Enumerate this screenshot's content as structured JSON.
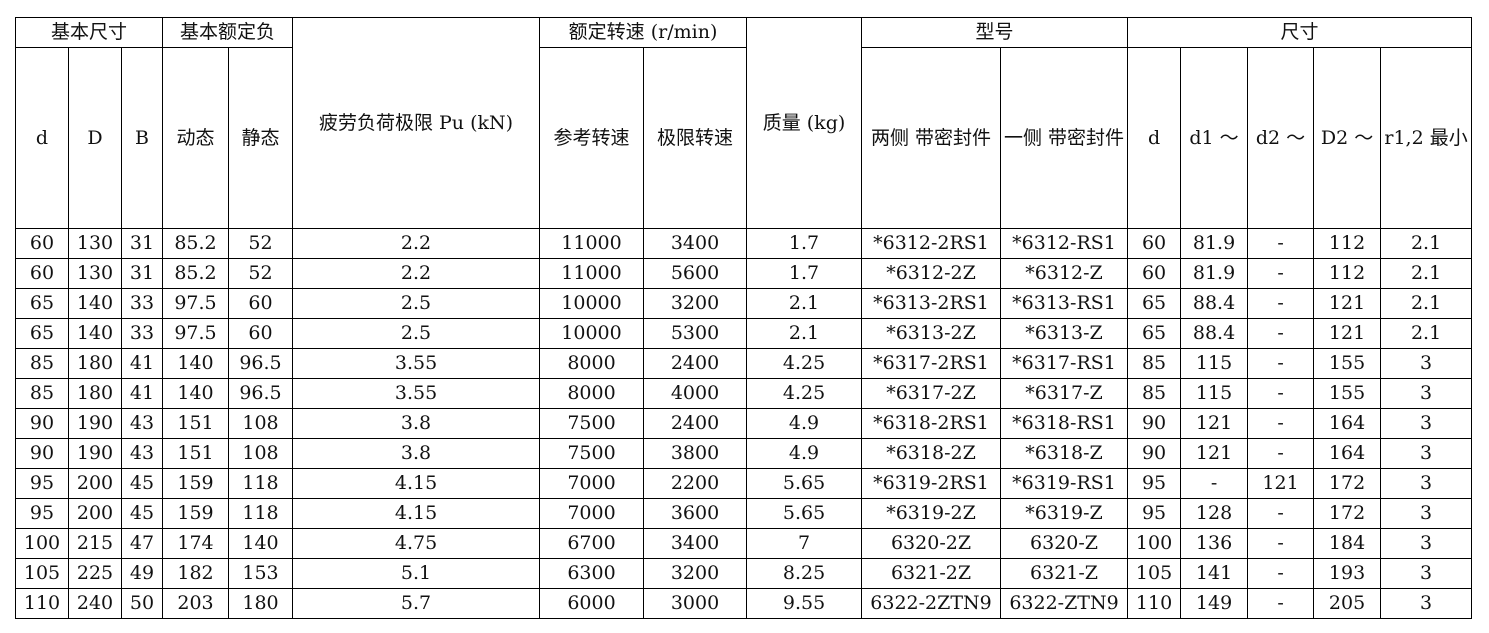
{
  "header": {
    "top": [
      "基本尺寸",
      "基本额定负",
      "疲劳负荷极限 Pu (kN)",
      "额定转速 (r/min)",
      "质量 (kg)",
      "型号",
      "尺寸"
    ],
    "sub": [
      "d",
      "D",
      "B",
      "动态",
      "静态",
      "参考转速",
      "极限转速",
      "两侧 带密封件",
      "一侧 带密封件",
      "d",
      "d1 ～",
      "d2 ～",
      "D2 ～",
      "r1,2 最小"
    ]
  },
  "table": {
    "rows": [
      [
        "60",
        "130",
        "31",
        "85.2",
        "52",
        "2.2",
        "11000",
        "3400",
        "1.7",
        "*6312-2RS1",
        "*6312-RS1",
        "60",
        "81.9",
        "-",
        "112",
        "2.1"
      ],
      [
        "60",
        "130",
        "31",
        "85.2",
        "52",
        "2.2",
        "11000",
        "5600",
        "1.7",
        "*6312-2Z",
        "*6312-Z",
        "60",
        "81.9",
        "-",
        "112",
        "2.1"
      ],
      [
        "65",
        "140",
        "33",
        "97.5",
        "60",
        "2.5",
        "10000",
        "3200",
        "2.1",
        "*6313-2RS1",
        "*6313-RS1",
        "65",
        "88.4",
        "-",
        "121",
        "2.1"
      ],
      [
        "65",
        "140",
        "33",
        "97.5",
        "60",
        "2.5",
        "10000",
        "5300",
        "2.1",
        "*6313-2Z",
        "*6313-Z",
        "65",
        "88.4",
        "-",
        "121",
        "2.1"
      ],
      [
        "85",
        "180",
        "41",
        "140",
        "96.5",
        "3.55",
        "8000",
        "2400",
        "4.25",
        "*6317-2RS1",
        "*6317-RS1",
        "85",
        "115",
        "-",
        "155",
        "3"
      ],
      [
        "85",
        "180",
        "41",
        "140",
        "96.5",
        "3.55",
        "8000",
        "4000",
        "4.25",
        "*6317-2Z",
        "*6317-Z",
        "85",
        "115",
        "-",
        "155",
        "3"
      ],
      [
        "90",
        "190",
        "43",
        "151",
        "108",
        "3.8",
        "7500",
        "2400",
        "4.9",
        "*6318-2RS1",
        "*6318-RS1",
        "90",
        "121",
        "-",
        "164",
        "3"
      ],
      [
        "90",
        "190",
        "43",
        "151",
        "108",
        "3.8",
        "7500",
        "3800",
        "4.9",
        "*6318-2Z",
        "*6318-Z",
        "90",
        "121",
        "-",
        "164",
        "3"
      ],
      [
        "95",
        "200",
        "45",
        "159",
        "118",
        "4.15",
        "7000",
        "2200",
        "5.65",
        "*6319-2RS1",
        "*6319-RS1",
        "95",
        "-",
        "121",
        "172",
        "3"
      ],
      [
        "95",
        "200",
        "45",
        "159",
        "118",
        "4.15",
        "7000",
        "3600",
        "5.65",
        "*6319-2Z",
        "*6319-Z",
        "95",
        "128",
        "-",
        "172",
        "3"
      ],
      [
        "100",
        "215",
        "47",
        "174",
        "140",
        "4.75",
        "6700",
        "3400",
        "7",
        "6320-2Z",
        "6320-Z",
        "100",
        "136",
        "-",
        "184",
        "3"
      ],
      [
        "105",
        "225",
        "49",
        "182",
        "153",
        "5.1",
        "6300",
        "3200",
        "8.25",
        "6321-2Z",
        "6321-Z",
        "105",
        "141",
        "-",
        "193",
        "3"
      ],
      [
        "110",
        "240",
        "50",
        "203",
        "180",
        "5.7",
        "6000",
        "3000",
        "9.55",
        "6322-2ZTN9",
        "6322-ZTN9",
        "110",
        "149",
        "-",
        "205",
        "3"
      ]
    ]
  }
}
